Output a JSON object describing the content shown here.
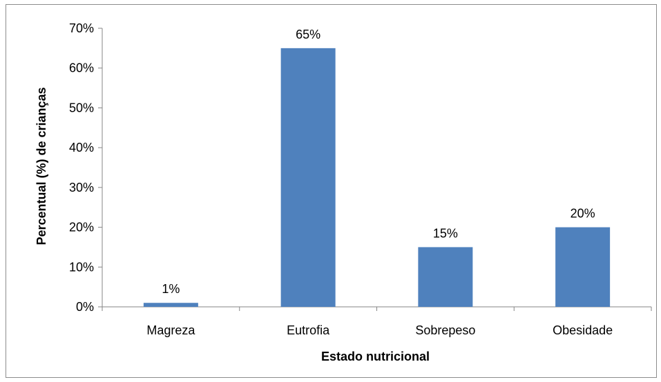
{
  "chart_data": {
    "type": "bar",
    "categories": [
      "Magreza",
      "Eutrofia",
      "Sobrepeso",
      "Obesidade"
    ],
    "values": [
      1,
      65,
      15,
      20
    ],
    "data_labels": [
      "1%",
      "65%",
      "15%",
      "20%"
    ],
    "xlabel": "Estado nutricional",
    "ylabel": "Percentual (%) de crianças",
    "ylim": [
      0,
      70
    ],
    "yticks": [
      0,
      10,
      20,
      30,
      40,
      50,
      60,
      70
    ],
    "ytick_labels": [
      "0%",
      "10%",
      "20%",
      "30%",
      "40%",
      "50%",
      "60%",
      "70%"
    ],
    "grid": false,
    "legend": "none",
    "bar_color": "#4f81bd"
  }
}
